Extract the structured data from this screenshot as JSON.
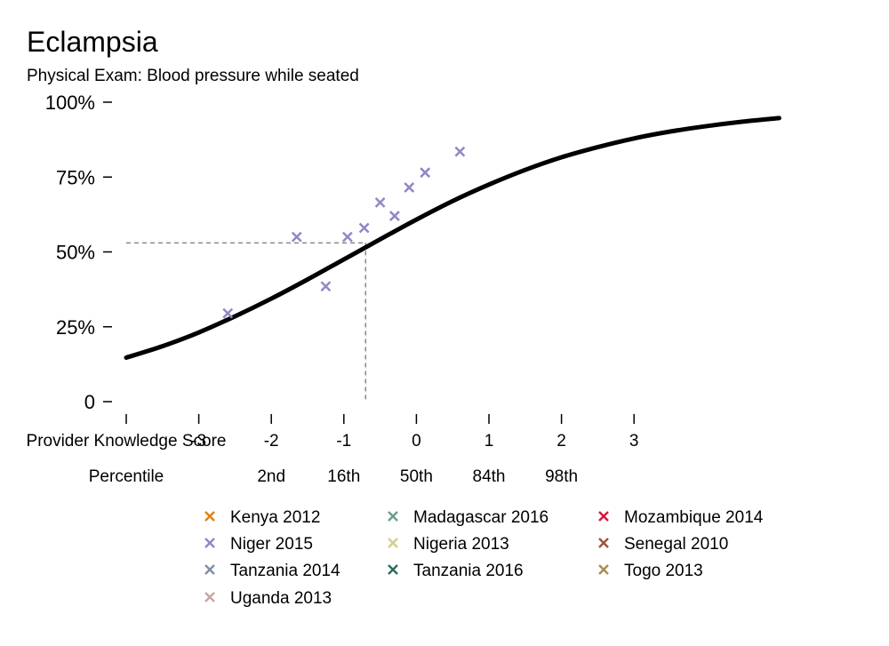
{
  "chart_data": {
    "type": "scatter",
    "title": "Eclampsia",
    "subtitle": "Physical Exam: Blood pressure while seated",
    "xlabel": "Provider Knowledge Score",
    "x_secondary_label": "Percentile",
    "xlim": [
      -4,
      5
    ],
    "ylim": [
      0,
      100
    ],
    "y_ticks": [
      {
        "value": 0,
        "label": "0"
      },
      {
        "value": 25,
        "label": "25%"
      },
      {
        "value": 50,
        "label": "50%"
      },
      {
        "value": 75,
        "label": "75%"
      },
      {
        "value": 100,
        "label": "100%"
      }
    ],
    "x_ticks": [
      {
        "value": -4,
        "label": ""
      },
      {
        "value": -3,
        "label": "-3"
      },
      {
        "value": -2,
        "label": "-2"
      },
      {
        "value": -1,
        "label": "-1"
      },
      {
        "value": 0,
        "label": "0"
      },
      {
        "value": 1,
        "label": "1"
      },
      {
        "value": 2,
        "label": "2"
      },
      {
        "value": 3,
        "label": "3"
      }
    ],
    "percentile_ticks": [
      {
        "value": -2,
        "label": "2nd"
      },
      {
        "value": -1,
        "label": "16th"
      },
      {
        "value": 0,
        "label": "50th"
      },
      {
        "value": 1,
        "label": "84th"
      },
      {
        "value": 2,
        "label": "98th"
      }
    ],
    "curve": {
      "color": "#000000",
      "x": [
        -4,
        -3.5,
        -3,
        -2.5,
        -2,
        -1.5,
        -1,
        -0.5,
        0,
        0.5,
        1,
        1.5,
        2,
        2.5,
        3,
        3.5,
        4,
        4.5,
        5
      ],
      "y": [
        14.7,
        18.5,
        23.1,
        28.5,
        34.4,
        40.8,
        47.5,
        54.2,
        60.8,
        67.0,
        72.5,
        77.4,
        81.6,
        85.0,
        87.9,
        90.2,
        92.0,
        93.5,
        94.7
      ]
    },
    "reference_point": {
      "x": -0.7,
      "y": 53
    },
    "series": [
      {
        "name": "Kenya 2012",
        "color": "#E08214",
        "points": []
      },
      {
        "name": "Madagascar 2016",
        "color": "#6B9E8A",
        "points": []
      },
      {
        "name": "Mozambique 2014",
        "color": "#D6173B",
        "points": []
      },
      {
        "name": "Niger 2015",
        "color": "#8E88C8",
        "points": [
          {
            "x": -2.6,
            "y": 29.5
          },
          {
            "x": -1.65,
            "y": 55
          },
          {
            "x": -1.25,
            "y": 38.5
          },
          {
            "x": -0.95,
            "y": 55
          },
          {
            "x": -0.72,
            "y": 58
          },
          {
            "x": -0.5,
            "y": 66.5
          },
          {
            "x": -0.3,
            "y": 62
          },
          {
            "x": -0.1,
            "y": 71.5
          },
          {
            "x": 0.12,
            "y": 76.5
          },
          {
            "x": 0.6,
            "y": 83.5
          }
        ]
      },
      {
        "name": "Nigeria 2013",
        "color": "#D5CF8A",
        "points": []
      },
      {
        "name": "Senegal 2010",
        "color": "#A0523A",
        "points": []
      },
      {
        "name": "Tanzania 2014",
        "color": "#7E8FA6",
        "points": []
      },
      {
        "name": "Tanzania 2016",
        "color": "#2E6B60",
        "points": []
      },
      {
        "name": "Togo 2013",
        "color": "#A88C52",
        "points": []
      },
      {
        "name": "Uganda 2013",
        "color": "#C7A7A0",
        "points": []
      }
    ],
    "legend_position": "bottom",
    "grid": false
  }
}
